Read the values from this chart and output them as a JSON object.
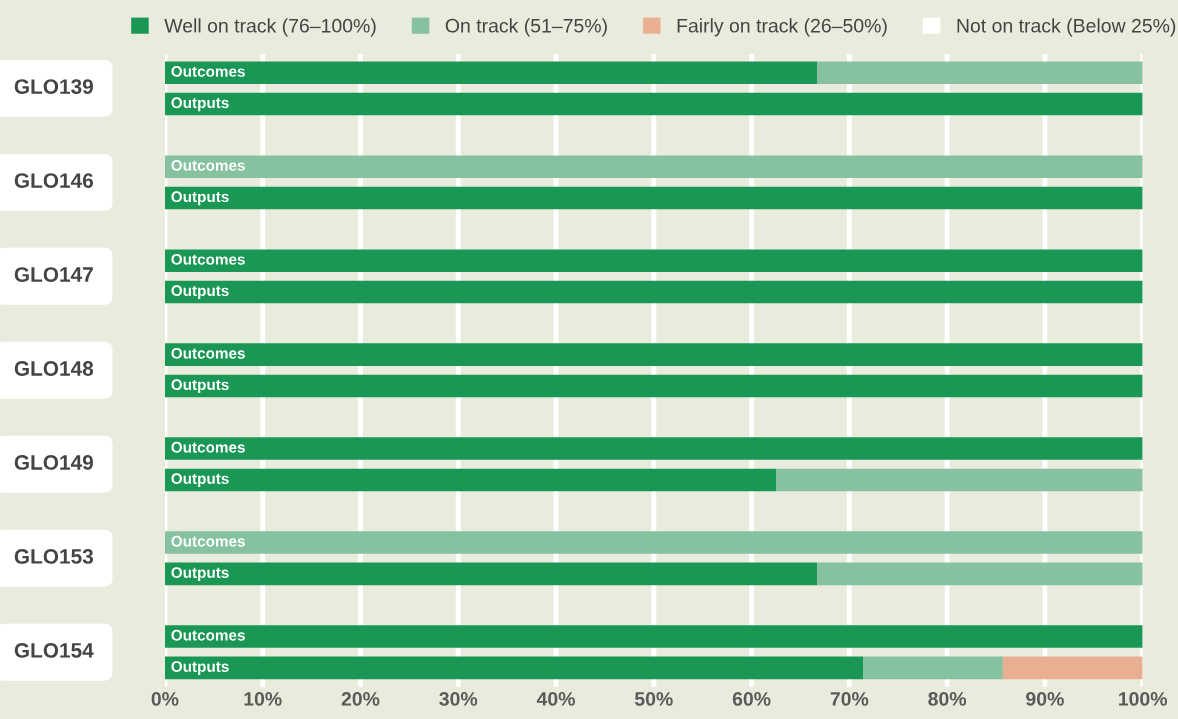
{
  "chart_data": {
    "type": "bar",
    "orientation": "horizontal",
    "stacked": true,
    "categories": [
      "Outcomes",
      "Outputs",
      "Outcomes",
      "Outputs",
      "Outcomes",
      "Outputs",
      "Outcomes",
      "Outputs",
      "Outcomes",
      "Outputs",
      "Outcomes",
      "Outputs",
      "Outcomes",
      "Outputs"
    ],
    "series": [
      {
        "name": "Well on track (76–100%)",
        "color": "#1a9755",
        "values": [
          66.7,
          100,
          0,
          100,
          100,
          100,
          100,
          100,
          100,
          62.5,
          0,
          66.7,
          100,
          71.4
        ]
      },
      {
        "name": "On track (51–75%)",
        "color": "#86c29f",
        "values": [
          33.3,
          0,
          100,
          0,
          0,
          0,
          0,
          0,
          0,
          37.5,
          100,
          33.3,
          0,
          14.3
        ]
      },
      {
        "name": "Fairly on track (26–50%)",
        "color": "#eaaf91",
        "values": [
          0,
          0,
          0,
          0,
          0,
          0,
          0,
          0,
          0,
          0,
          0,
          0,
          0,
          14.3
        ]
      },
      {
        "name": "Not on track (Below 25%)",
        "color": "#ffffff",
        "values": [
          0,
          0,
          0,
          0,
          0,
          0,
          0,
          0,
          0,
          0,
          0,
          0,
          0,
          0
        ]
      }
    ],
    "annotations": [
      "GLO139",
      "GLO146",
      "GLO147",
      "GLO148",
      "GLO149",
      "GLO153",
      "GLO154"
    ],
    "xlim": [
      0,
      100
    ],
    "xticks": [
      {
        "value": 0,
        "label": "0%"
      },
      {
        "value": 10,
        "label": "10%"
      },
      {
        "value": 20,
        "label": "20%"
      },
      {
        "value": 30,
        "label": "30%"
      },
      {
        "value": 40,
        "label": "40%"
      },
      {
        "value": 50,
        "label": "50%"
      },
      {
        "value": 60,
        "label": "60%"
      },
      {
        "value": 70,
        "label": "70%"
      },
      {
        "value": 80,
        "label": "80%"
      },
      {
        "value": 90,
        "label": "90%"
      },
      {
        "value": 100,
        "label": "100%"
      }
    ],
    "tick_labels": "x",
    "grid": "x",
    "legend": "top"
  }
}
